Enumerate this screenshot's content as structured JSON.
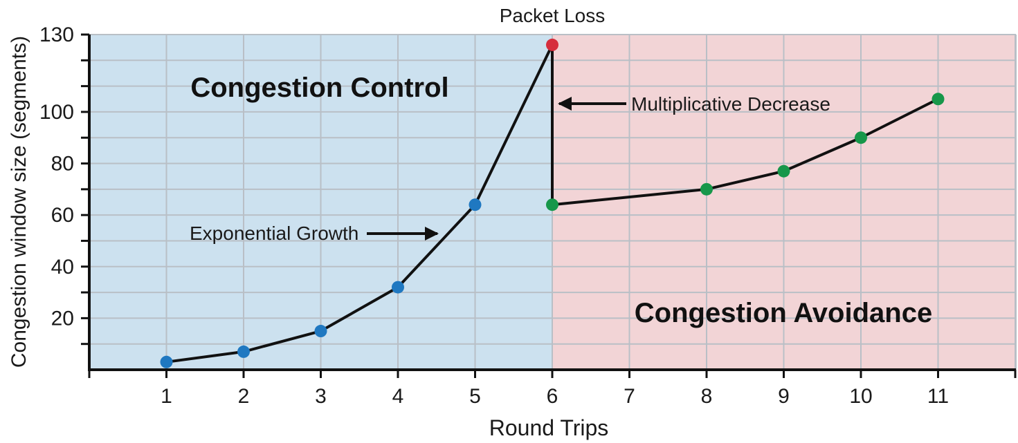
{
  "chart_data": {
    "type": "line",
    "xlabel": "Round Trips",
    "ylabel": "Congestion window size (segments)",
    "x_ticks": [
      "1",
      "2",
      "3",
      "4",
      "5",
      "6",
      "7",
      "8",
      "9",
      "10",
      "11"
    ],
    "y_ticks": [
      "20",
      "40",
      "60",
      "80",
      "100",
      "130"
    ],
    "ylim": [
      0,
      130
    ],
    "grid": true,
    "regions": [
      {
        "label": "Congestion Control",
        "x_range": [
          0,
          6
        ],
        "color": "#cce1ef"
      },
      {
        "label": "Congestion Avoidance",
        "x_range": [
          6,
          12
        ],
        "color": "#f2d4d6"
      }
    ],
    "points": [
      {
        "x": 1,
        "y": 3,
        "color": "#1f78c1"
      },
      {
        "x": 2,
        "y": 7,
        "color": "#1f78c1"
      },
      {
        "x": 3,
        "y": 15,
        "color": "#1f78c1"
      },
      {
        "x": 4,
        "y": 32,
        "color": "#1f78c1"
      },
      {
        "x": 5,
        "y": 64,
        "color": "#1f78c1"
      },
      {
        "x": 6,
        "y": 126,
        "color": "#d62e3d"
      },
      {
        "x": 6,
        "y": 64,
        "color": "#17974a"
      },
      {
        "x": 8,
        "y": 70,
        "color": "#17974a"
      },
      {
        "x": 9,
        "y": 77,
        "color": "#17974a"
      },
      {
        "x": 10,
        "y": 90,
        "color": "#17974a"
      },
      {
        "x": 11,
        "y": 105,
        "color": "#17974a"
      }
    ],
    "annotations": {
      "packet_loss": "Packet Loss",
      "multiplicative_decrease": "Multiplicative Decrease",
      "exponential_growth": "Exponential Growth"
    }
  }
}
